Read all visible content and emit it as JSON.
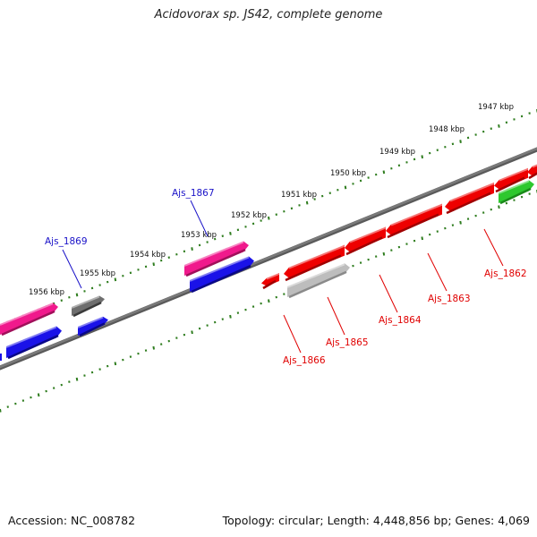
{
  "title": "Acidovorax sp. JS42, complete genome",
  "footer": {
    "accession": "Accession: NC_008782",
    "summary": "Topology: circular; Length: 4,448,856 bp; Genes: 4,069"
  },
  "colors": {
    "backbone": "#7a7a7a",
    "tick": "#2f7d1f",
    "red": "#ee0000",
    "blue": "#1a12e8",
    "magenta": "#f0198c",
    "gray_dark": "#6e6e6e",
    "gray_light": "#bdbdbd",
    "green": "#2ec82e",
    "label_red": "#e00000",
    "label_blue": "#1a12c8"
  },
  "kbp_ticks": [
    "1947 kbp",
    "1948 kbp",
    "1949 kbp",
    "1950 kbp",
    "1951 kbp",
    "1952 kbp",
    "1953 kbp",
    "1954 kbp",
    "1955 kbp",
    "1956 kbp"
  ],
  "gene_labels": [
    {
      "name": "Ajs_1862",
      "strand": "minus"
    },
    {
      "name": "Ajs_1863",
      "strand": "minus"
    },
    {
      "name": "Ajs_1864",
      "strand": "minus"
    },
    {
      "name": "Ajs_1865",
      "strand": "minus"
    },
    {
      "name": "Ajs_1866",
      "strand": "minus"
    },
    {
      "name": "Ajs_1867",
      "strand": "plus"
    },
    {
      "name": "Ajs_1869",
      "strand": "plus"
    }
  ]
}
